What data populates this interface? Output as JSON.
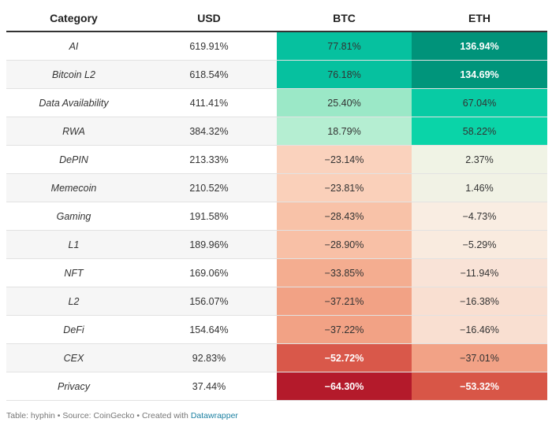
{
  "chart_data": {
    "type": "table",
    "columns": [
      "Category",
      "USD",
      "BTC",
      "ETH"
    ],
    "rows": [
      {
        "category": "AI",
        "usd": "619.91%",
        "btc": "77.81%",
        "eth": "136.94%",
        "btc_value": 77.81,
        "eth_value": 136.94,
        "btc_color": "#06c19f",
        "eth_color": "#00937a",
        "btc_text": "#333333",
        "eth_text": "#ffffff"
      },
      {
        "category": "Bitcoin L2",
        "usd": "618.54%",
        "btc": "76.18%",
        "eth": "134.69%",
        "btc_value": 76.18,
        "eth_value": 134.69,
        "btc_color": "#06c19f",
        "eth_color": "#00957b",
        "btc_text": "#333333",
        "eth_text": "#ffffff"
      },
      {
        "category": "Data Availability",
        "usd": "411.41%",
        "btc": "25.40%",
        "eth": "67.04%",
        "btc_value": 25.4,
        "eth_value": 67.04,
        "btc_color": "#9be8c7",
        "eth_color": "#08cba4",
        "btc_text": "#333333",
        "eth_text": "#333333"
      },
      {
        "category": "RWA",
        "usd": "384.32%",
        "btc": "18.79%",
        "eth": "58.22%",
        "btc_value": 18.79,
        "eth_value": 58.22,
        "btc_color": "#b5eed2",
        "eth_color": "#0ad4a8",
        "btc_text": "#333333",
        "eth_text": "#333333"
      },
      {
        "category": "DePIN",
        "usd": "213.33%",
        "btc": "−23.14%",
        "eth": "2.37%",
        "btc_value": -23.14,
        "eth_value": 2.37,
        "btc_color": "#fad2bd",
        "eth_color": "#f0f3e5",
        "btc_text": "#333333",
        "eth_text": "#333333"
      },
      {
        "category": "Memecoin",
        "usd": "210.52%",
        "btc": "−23.81%",
        "eth": "1.46%",
        "btc_value": -23.81,
        "eth_value": 1.46,
        "btc_color": "#fad0ba",
        "eth_color": "#f1f2e5",
        "btc_text": "#333333",
        "eth_text": "#333333"
      },
      {
        "category": "Gaming",
        "usd": "191.58%",
        "btc": "−28.43%",
        "eth": "−4.73%",
        "btc_value": -28.43,
        "eth_value": -4.73,
        "btc_color": "#f8c2a8",
        "eth_color": "#f9ede2",
        "btc_text": "#333333",
        "eth_text": "#333333"
      },
      {
        "category": "L1",
        "usd": "189.96%",
        "btc": "−28.90%",
        "eth": "−5.29%",
        "btc_value": -28.9,
        "eth_value": -5.29,
        "btc_color": "#f8c0a6",
        "eth_color": "#f9ebdf",
        "btc_text": "#333333",
        "eth_text": "#333333"
      },
      {
        "category": "NFT",
        "usd": "169.06%",
        "btc": "−33.85%",
        "eth": "−11.94%",
        "btc_value": -33.85,
        "eth_value": -11.94,
        "btc_color": "#f4ad90",
        "eth_color": "#f9e3d7",
        "btc_text": "#333333",
        "eth_text": "#333333"
      },
      {
        "category": "L2",
        "usd": "156.07%",
        "btc": "−37.21%",
        "eth": "−16.38%",
        "btc_value": -37.21,
        "eth_value": -16.38,
        "btc_color": "#f2a285",
        "eth_color": "#f9dfd1",
        "btc_text": "#333333",
        "eth_text": "#333333"
      },
      {
        "category": "DeFi",
        "usd": "154.64%",
        "btc": "−37.22%",
        "eth": "−16.46%",
        "btc_value": -37.22,
        "eth_value": -16.46,
        "btc_color": "#f2a285",
        "eth_color": "#f9dfd1",
        "btc_text": "#333333",
        "eth_text": "#333333"
      },
      {
        "category": "CEX",
        "usd": "92.83%",
        "btc": "−52.72%",
        "eth": "−37.01%",
        "btc_value": -52.72,
        "eth_value": -37.01,
        "btc_color": "#d9584a",
        "eth_color": "#f2a286",
        "btc_text": "#ffffff",
        "eth_text": "#333333"
      },
      {
        "category": "Privacy",
        "usd": "37.44%",
        "btc": "−64.30%",
        "eth": "−53.32%",
        "btc_value": -64.3,
        "eth_value": -53.32,
        "btc_color": "#b41a2b",
        "eth_color": "#d85647",
        "btc_text": "#ffffff",
        "eth_text": "#ffffff"
      }
    ]
  },
  "footer": {
    "text": "Table: hyphin • Source: CoinGecko • Created with ",
    "link": "Datawrapper"
  }
}
